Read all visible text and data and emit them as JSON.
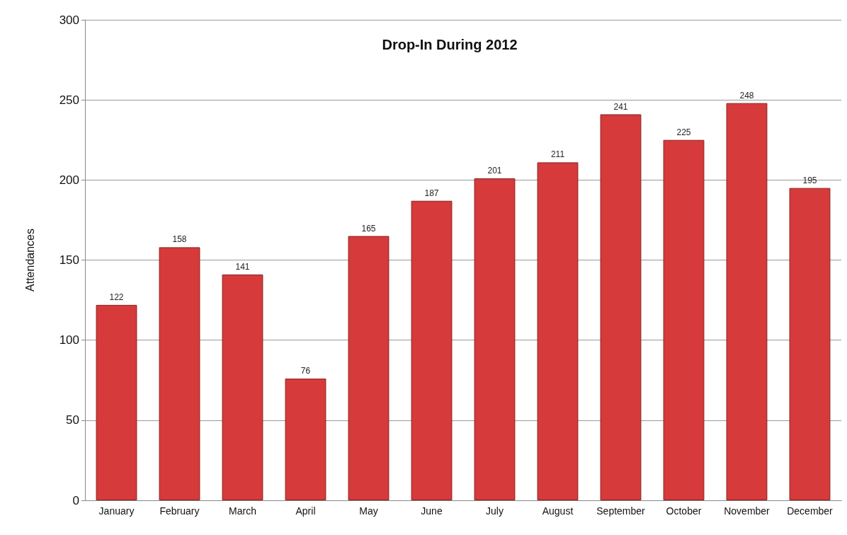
{
  "chart_data": {
    "type": "bar",
    "title": "Drop-In During 2012",
    "ylabel": "Attendances",
    "categories": [
      "January",
      "February",
      "March",
      "April",
      "May",
      "June",
      "July",
      "August",
      "September",
      "October",
      "November",
      "December"
    ],
    "values": [
      122,
      158,
      141,
      76,
      165,
      187,
      201,
      211,
      241,
      225,
      248,
      195
    ],
    "color": "#d63a3a",
    "ylim": [
      0,
      300
    ],
    "yticks": [
      0,
      50,
      100,
      150,
      200,
      250,
      300
    ],
    "grid": "y",
    "data_labels": true
  }
}
